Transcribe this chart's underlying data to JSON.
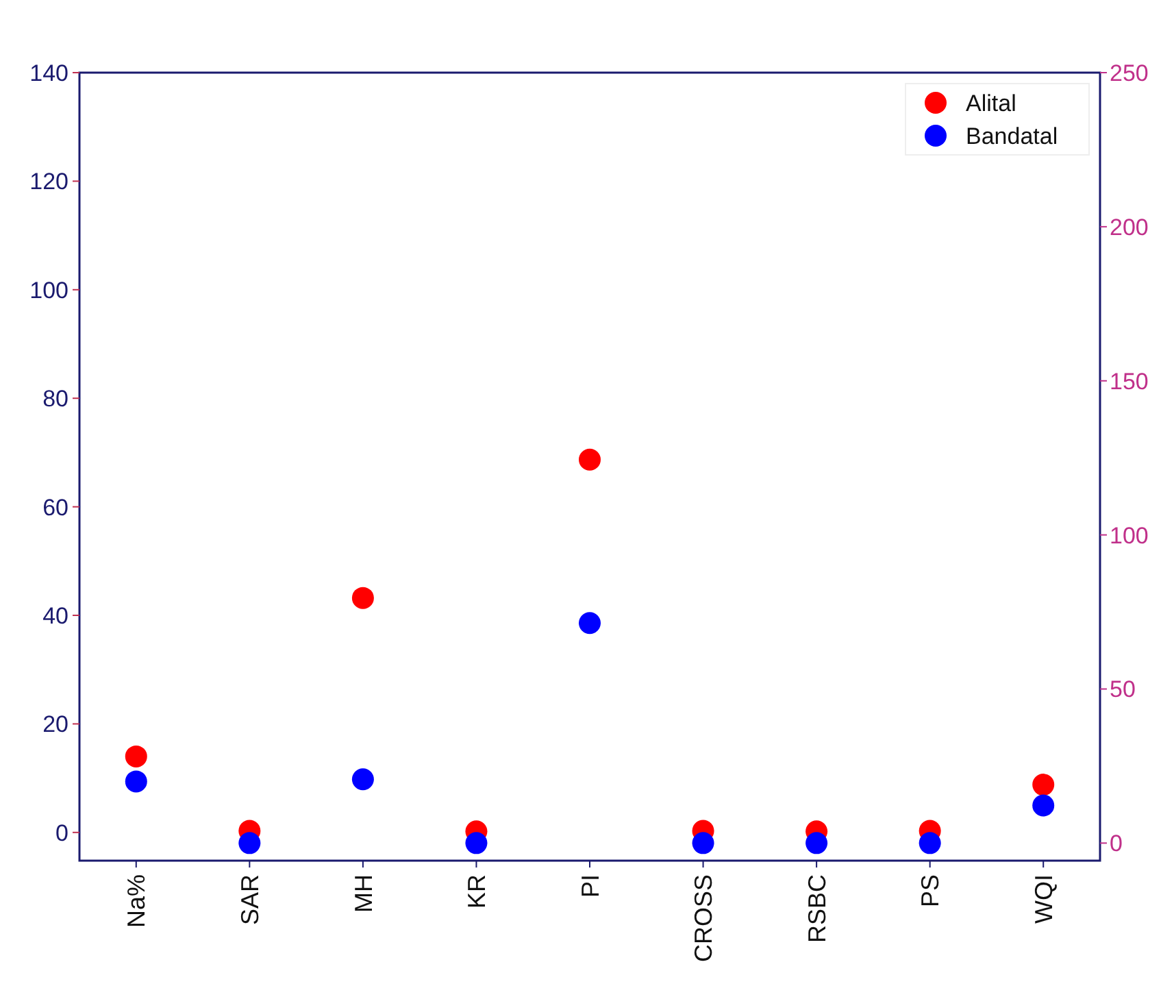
{
  "chart_data": {
    "type": "scatter",
    "categories": [
      "Na%",
      "SAR",
      "MH",
      "KR",
      "PI",
      "CROSS",
      "RSBC",
      "PS",
      "WQI"
    ],
    "series": [
      {
        "name": "Alital",
        "color": "#ff0000",
        "values": [
          14.0,
          0.3,
          43.2,
          0.2,
          68.7,
          0.3,
          0.2,
          0.3,
          8.8
        ]
      },
      {
        "name": "Bandatal",
        "color": "#0000ff",
        "axis": "y2",
        "values": [
          20,
          0,
          20.7,
          0,
          71.4,
          0,
          0,
          0,
          12.2
        ]
      }
    ],
    "ylim": [
      -5.2,
      140
    ],
    "yticks": [
      0,
      20,
      40,
      60,
      80,
      100,
      120,
      140
    ],
    "y2lim": [
      -5.7,
      250
    ],
    "y2ticks": [
      0,
      50,
      100,
      150,
      200,
      250
    ],
    "legend": "top right",
    "grid": false,
    "marker": "circle"
  }
}
